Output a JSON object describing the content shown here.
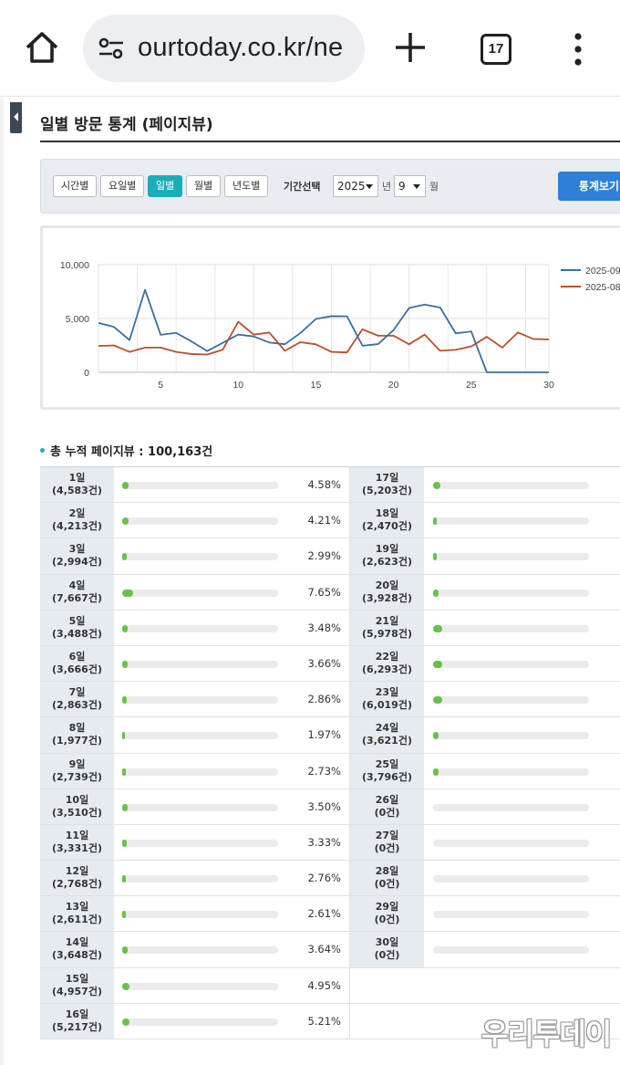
{
  "browser": {
    "url": "ourtoday.co.kr/ne",
    "tab_count": "17"
  },
  "page": {
    "title": "일별 방문 통계 (페이지뷰)"
  },
  "filter": {
    "segments": [
      "시간별",
      "요일별",
      "일별",
      "월별",
      "년도별"
    ],
    "active_segment": "일별",
    "period_label": "기간선택",
    "year_value": "2025",
    "year_unit": "년",
    "month_value": "9",
    "month_unit": "월",
    "view_button": "통계보기"
  },
  "chart_data": {
    "type": "line",
    "x": [
      1,
      2,
      3,
      4,
      5,
      6,
      7,
      8,
      9,
      10,
      11,
      12,
      13,
      14,
      15,
      16,
      17,
      18,
      19,
      20,
      21,
      22,
      23,
      24,
      25,
      26,
      27,
      28,
      29,
      30
    ],
    "x_ticks": [
      "5",
      "10",
      "15",
      "20",
      "25",
      "30"
    ],
    "y_ticks": [
      "10,000",
      "5,000",
      "0"
    ],
    "ylim": [
      0,
      10000
    ],
    "grid": true,
    "legend_position": "right",
    "series": [
      {
        "name": "2025-09",
        "color": "#3c6e9f",
        "values": [
          4583,
          4213,
          2994,
          7667,
          3488,
          3666,
          2863,
          1977,
          2739,
          3510,
          3331,
          2768,
          2611,
          3648,
          4957,
          5217,
          5203,
          2470,
          2623,
          3928,
          5978,
          6293,
          6019,
          3621,
          3796,
          0,
          0,
          0,
          0,
          0
        ]
      },
      {
        "name": "2025-08",
        "color": "#b8502e",
        "values": [
          2450,
          2500,
          1900,
          2300,
          2300,
          1900,
          1700,
          1650,
          2100,
          4700,
          3500,
          3700,
          2000,
          2800,
          2600,
          1900,
          1850,
          4000,
          3400,
          3400,
          2600,
          3500,
          2000,
          2100,
          2400,
          3300,
          2300,
          3700,
          3100,
          3050
        ]
      }
    ]
  },
  "summary": {
    "total_text": "총 누적 페이지뷰 : 100,163건"
  },
  "daily_stats": [
    {
      "day": "1일",
      "count": "(4,583건)",
      "pct": "4.58%",
      "ratio": 0.0458
    },
    {
      "day": "2일",
      "count": "(4,213건)",
      "pct": "4.21%",
      "ratio": 0.0421
    },
    {
      "day": "3일",
      "count": "(2,994건)",
      "pct": "2.99%",
      "ratio": 0.0299
    },
    {
      "day": "4일",
      "count": "(7,667건)",
      "pct": "7.65%",
      "ratio": 0.0765
    },
    {
      "day": "5일",
      "count": "(3,488건)",
      "pct": "3.48%",
      "ratio": 0.0348
    },
    {
      "day": "6일",
      "count": "(3,666건)",
      "pct": "3.66%",
      "ratio": 0.0366
    },
    {
      "day": "7일",
      "count": "(2,863건)",
      "pct": "2.86%",
      "ratio": 0.0286
    },
    {
      "day": "8일",
      "count": "(1,977건)",
      "pct": "1.97%",
      "ratio": 0.0197
    },
    {
      "day": "9일",
      "count": "(2,739건)",
      "pct": "2.73%",
      "ratio": 0.0273
    },
    {
      "day": "10일",
      "count": "(3,510건)",
      "pct": "3.50%",
      "ratio": 0.035
    },
    {
      "day": "11일",
      "count": "(3,331건)",
      "pct": "3.33%",
      "ratio": 0.0333
    },
    {
      "day": "12일",
      "count": "(2,768건)",
      "pct": "2.76%",
      "ratio": 0.0276
    },
    {
      "day": "13일",
      "count": "(2,611건)",
      "pct": "2.61%",
      "ratio": 0.0261
    },
    {
      "day": "14일",
      "count": "(3,648건)",
      "pct": "3.64%",
      "ratio": 0.0364
    },
    {
      "day": "15일",
      "count": "(4,957건)",
      "pct": "4.95%",
      "ratio": 0.0495
    },
    {
      "day": "16일",
      "count": "(5,217건)",
      "pct": "5.21%",
      "ratio": 0.0521
    },
    {
      "day": "17일",
      "count": "(5,203건)",
      "ratio": 0.052
    },
    {
      "day": "18일",
      "count": "(2,470건)",
      "ratio": 0.0247
    },
    {
      "day": "19일",
      "count": "(2,623건)",
      "ratio": 0.0262
    },
    {
      "day": "20일",
      "count": "(3,928건)",
      "ratio": 0.0392
    },
    {
      "day": "21일",
      "count": "(5,978건)",
      "ratio": 0.0597
    },
    {
      "day": "22일",
      "count": "(6,293건)",
      "ratio": 0.0628
    },
    {
      "day": "23일",
      "count": "(6,019건)",
      "ratio": 0.0601
    },
    {
      "day": "24일",
      "count": "(3,621건)",
      "ratio": 0.0362
    },
    {
      "day": "25일",
      "count": "(3,796건)",
      "ratio": 0.0379
    },
    {
      "day": "26일",
      "count": "(0건)",
      "ratio": 0
    },
    {
      "day": "27일",
      "count": "(0건)",
      "ratio": 0
    },
    {
      "day": "28일",
      "count": "(0건)",
      "ratio": 0
    },
    {
      "day": "29일",
      "count": "(0건)",
      "ratio": 0
    },
    {
      "day": "30일",
      "count": "(0건)",
      "ratio": 0
    }
  ],
  "watermark": "우리투데이"
}
